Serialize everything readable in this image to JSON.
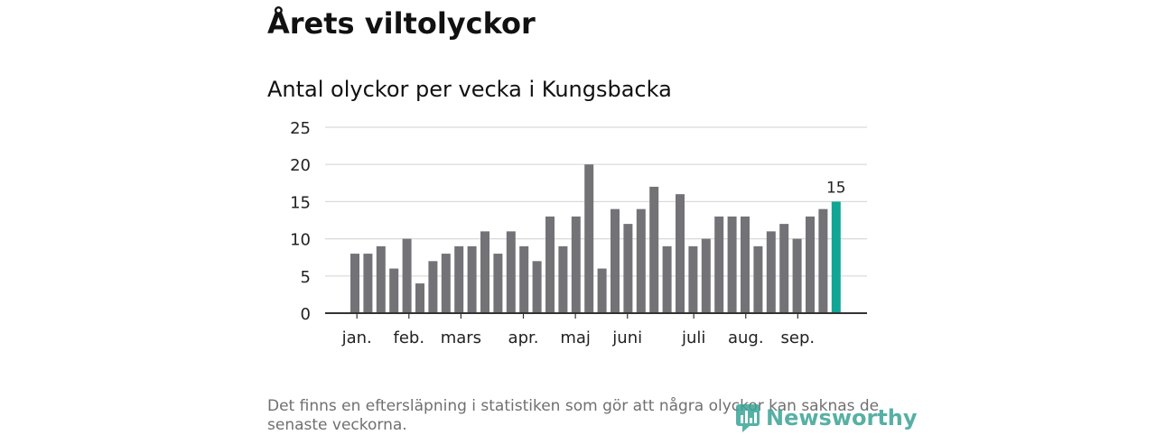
{
  "header": {
    "title": "Årets viltolyckor"
  },
  "chart_data": {
    "type": "bar",
    "title": "Antal olyckor per vecka i Kungsbacka",
    "xlabel": "",
    "ylabel": "",
    "ylim": [
      0,
      25
    ],
    "yticks": [
      0,
      5,
      10,
      15,
      20,
      25
    ],
    "grid": true,
    "values": [
      8,
      8,
      9,
      6,
      10,
      4,
      7,
      8,
      9,
      9,
      11,
      8,
      11,
      9,
      7,
      13,
      9,
      13,
      20,
      6,
      14,
      12,
      14,
      17,
      9,
      16,
      9,
      10,
      13,
      13,
      13,
      9,
      11,
      12,
      10,
      13,
      14,
      15
    ],
    "month_labels": [
      {
        "label": "jan.",
        "week": 0.5
      },
      {
        "label": "feb.",
        "week": 4.5
      },
      {
        "label": "mars",
        "week": 8.5
      },
      {
        "label": "apr.",
        "week": 13.3
      },
      {
        "label": "maj",
        "week": 17.3
      },
      {
        "label": "juni",
        "week": 21.3
      },
      {
        "label": "juli",
        "week": 26.4
      },
      {
        "label": "aug.",
        "week": 30.4
      },
      {
        "label": "sep.",
        "week": 34.4
      }
    ],
    "highlight_index": 37,
    "highlight_label": "15",
    "colors": {
      "bar": "#737277",
      "highlight": "#10a595",
      "grid": "#d9d9d9",
      "axis": "#333333"
    }
  },
  "footnote": {
    "text": "Det finns en eftersläpning i statistiken som gör att några olyckor kan saknas de senaste veckorna."
  },
  "logo": {
    "text": "Newsworthy",
    "icon": "newsworthy-logo-icon",
    "color": "#3aa395"
  }
}
